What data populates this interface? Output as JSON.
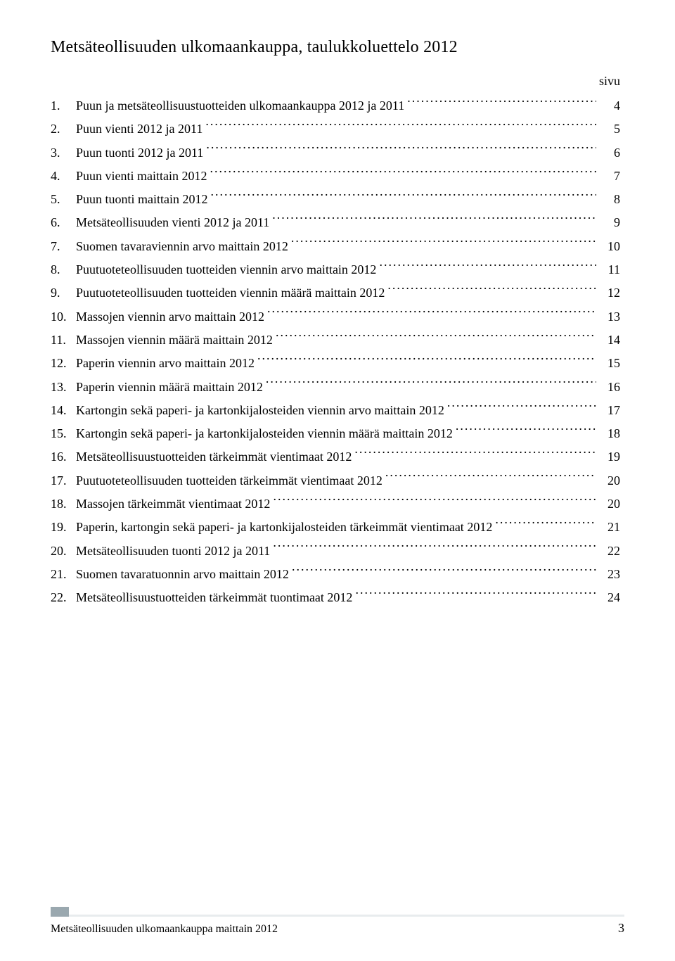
{
  "title": "Metsäteollisuuden ulkomaankauppa, taulukkoluettelo 2012",
  "page_header": "sivu",
  "toc": [
    {
      "num": "1.",
      "text": "Puun ja metsäteollisuustuotteiden ulkomaankauppa 2012 ja 2011",
      "page": "4"
    },
    {
      "num": "2.",
      "text": "Puun vienti 2012 ja 2011",
      "page": "5"
    },
    {
      "num": "3.",
      "text": "Puun tuonti 2012 ja 2011",
      "page": "6"
    },
    {
      "num": "4.",
      "text": "Puun vienti maittain 2012",
      "page": "7"
    },
    {
      "num": "5.",
      "text": "Puun tuonti maittain 2012",
      "page": "8"
    },
    {
      "num": "6.",
      "text": "Metsäteollisuuden vienti 2012 ja 2011",
      "page": "9"
    },
    {
      "num": "7.",
      "text": "Suomen tavaraviennin arvo maittain 2012",
      "page": "10"
    },
    {
      "num": "8.",
      "text": "Puutuoteteollisuuden tuotteiden viennin arvo maittain 2012",
      "page": "11"
    },
    {
      "num": "9.",
      "text": "Puutuoteteollisuuden tuotteiden viennin määrä maittain 2012",
      "page": "12"
    },
    {
      "num": "10.",
      "text": "Massojen viennin arvo maittain 2012",
      "page": "13"
    },
    {
      "num": "11.",
      "text": "Massojen viennin määrä maittain 2012",
      "page": "14"
    },
    {
      "num": "12.",
      "text": "Paperin viennin arvo maittain 2012",
      "page": "15"
    },
    {
      "num": "13.",
      "text": "Paperin viennin määrä maittain 2012",
      "page": "16"
    },
    {
      "num": "14.",
      "text": "Kartongin sekä paperi- ja kartonkijalosteiden viennin arvo maittain 2012",
      "page": "17"
    },
    {
      "num": "15.",
      "text": "Kartongin sekä paperi- ja kartonkijalosteiden viennin määrä maittain 2012",
      "page": "18"
    },
    {
      "num": "16.",
      "text": "Metsäteollisuustuotteiden tärkeimmät vientimaat 2012",
      "page": "19"
    },
    {
      "num": "17.",
      "text": "Puutuoteteollisuuden tuotteiden tärkeimmät vientimaat 2012",
      "page": "20"
    },
    {
      "num": "18.",
      "text": "Massojen tärkeimmät vientimaat 2012",
      "page": "20"
    },
    {
      "num": "19.",
      "text": "Paperin, kartongin sekä paperi- ja kartonkijalosteiden tärkeimmät vientimaat 2012",
      "page": "21"
    },
    {
      "num": "20.",
      "text": "Metsäteollisuuden tuonti 2012 ja 2011",
      "page": "22"
    },
    {
      "num": "21.",
      "text": "Suomen tavaratuonnin arvo maittain 2012",
      "page": "23"
    },
    {
      "num": "22.",
      "text": "Metsäteollisuustuotteiden tärkeimmät tuontimaat 2012",
      "page": "24"
    }
  ],
  "footer": {
    "text": "Metsäteollisuuden ulkomaankauppa maittain 2012",
    "page_number": "3",
    "bar_dark_color": "#9aa8af",
    "bar_light_color": "#e8ecee"
  }
}
